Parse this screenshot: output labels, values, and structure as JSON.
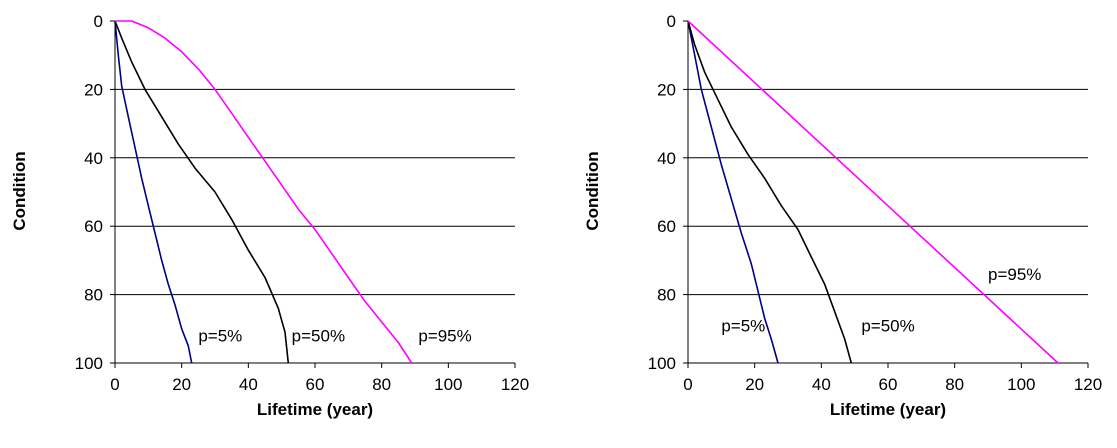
{
  "chart_data": [
    {
      "type": "line",
      "title": "",
      "xlabel": "Lifetime (year)",
      "ylabel": "Condition",
      "xlim": [
        0,
        120
      ],
      "ylim": [
        0,
        100
      ],
      "y_inverted": true,
      "xticks": [
        0,
        20,
        40,
        60,
        80,
        100,
        120
      ],
      "yticks": [
        0,
        20,
        40,
        60,
        80,
        100
      ],
      "grid": "horizontal",
      "legend": "none",
      "series": [
        {
          "name": "p=5%",
          "color": "#000080",
          "points": [
            [
              0,
              0
            ],
            [
              1,
              10
            ],
            [
              2,
              19
            ],
            [
              4,
              28
            ],
            [
              6,
              37
            ],
            [
              8,
              46
            ],
            [
              10,
              54
            ],
            [
              12,
              62
            ],
            [
              14,
              70
            ],
            [
              16,
              77
            ],
            [
              18,
              83
            ],
            [
              20,
              90
            ],
            [
              22,
              95
            ],
            [
              23,
              100
            ]
          ]
        },
        {
          "name": "p=50%",
          "color": "#000000",
          "points": [
            [
              0,
              0
            ],
            [
              2,
              5
            ],
            [
              5,
              12
            ],
            [
              9,
              20
            ],
            [
              14,
              28
            ],
            [
              19,
              36
            ],
            [
              24,
              43
            ],
            [
              30,
              50
            ],
            [
              35,
              58
            ],
            [
              40,
              67
            ],
            [
              45,
              75
            ],
            [
              49,
              84
            ],
            [
              51,
              91
            ],
            [
              52,
              100
            ]
          ]
        },
        {
          "name": "p=95%",
          "color": "#ff00ff",
          "points": [
            [
              0,
              0
            ],
            [
              5,
              0
            ],
            [
              10,
              2
            ],
            [
              15,
              5
            ],
            [
              20,
              9
            ],
            [
              25,
              14
            ],
            [
              30,
              20
            ],
            [
              35,
              27
            ],
            [
              40,
              34
            ],
            [
              45,
              41
            ],
            [
              50,
              48
            ],
            [
              55,
              55
            ],
            [
              60,
              61
            ],
            [
              65,
              68
            ],
            [
              70,
              75
            ],
            [
              75,
              82
            ],
            [
              80,
              88
            ],
            [
              85,
              94
            ],
            [
              89,
              100
            ]
          ]
        }
      ],
      "annotations": [
        {
          "text": "p=5%",
          "x": 25,
          "y": 92
        },
        {
          "text": "p=50%",
          "x": 53,
          "y": 92
        },
        {
          "text": "p=95%",
          "x": 91,
          "y": 92
        }
      ]
    },
    {
      "type": "line",
      "title": "",
      "xlabel": "Lifetime (year)",
      "ylabel": "Condition",
      "xlim": [
        0,
        120
      ],
      "ylim": [
        0,
        100
      ],
      "y_inverted": true,
      "xticks": [
        0,
        20,
        40,
        60,
        80,
        100,
        120
      ],
      "yticks": [
        0,
        20,
        40,
        60,
        80,
        100
      ],
      "grid": "horizontal",
      "legend": "none",
      "series": [
        {
          "name": "p=5%",
          "color": "#000080",
          "points": [
            [
              0,
              0
            ],
            [
              2,
              10
            ],
            [
              4,
              20
            ],
            [
              7,
              31
            ],
            [
              10,
              42
            ],
            [
              13,
              52
            ],
            [
              16,
              62
            ],
            [
              19,
              71
            ],
            [
              21,
              79
            ],
            [
              23,
              87
            ],
            [
              25,
              93
            ],
            [
              27,
              100
            ]
          ]
        },
        {
          "name": "p=50%",
          "color": "#000000",
          "points": [
            [
              0,
              0
            ],
            [
              2,
              7
            ],
            [
              5,
              15
            ],
            [
              9,
              23
            ],
            [
              13,
              31
            ],
            [
              18,
              39
            ],
            [
              23,
              46
            ],
            [
              28,
              54
            ],
            [
              33,
              61
            ],
            [
              37,
              69
            ],
            [
              41,
              77
            ],
            [
              44,
              85
            ],
            [
              47,
              93
            ],
            [
              49,
              100
            ]
          ]
        },
        {
          "name": "p=95%",
          "color": "#ff00ff",
          "points": [
            [
              0,
              0
            ],
            [
              111,
              100
            ]
          ]
        }
      ],
      "annotations": [
        {
          "text": "p=5%",
          "x": 10,
          "y": 89
        },
        {
          "text": "p=50%",
          "x": 52,
          "y": 89
        },
        {
          "text": "p=95%",
          "x": 90,
          "y": 74
        }
      ]
    }
  ]
}
